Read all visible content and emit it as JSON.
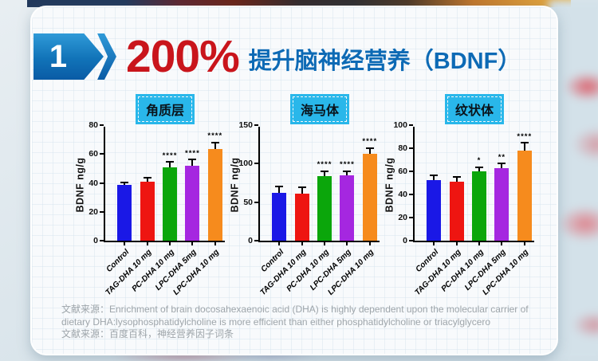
{
  "header": {
    "badge_number": "1",
    "highlight": "200%",
    "title": "提升脑神经营养（BDNF）"
  },
  "chart_data": [
    {
      "type": "bar",
      "title": "角质层",
      "ylabel": "BDNF ng/g",
      "ylim": [
        0,
        80
      ],
      "yticks": [
        0,
        20,
        40,
        60,
        80
      ],
      "categories": [
        "Control",
        "TAG-DHA 10 mg",
        "PC-DHA 10 mg",
        "LPC-DHA 5mg",
        "LPC-DHA 10 mg"
      ],
      "values": [
        38.5,
        41,
        50.5,
        52,
        63.5
      ],
      "errors": [
        1.5,
        2,
        3.5,
        3.5,
        4
      ],
      "significance": [
        "",
        "",
        "****",
        "****",
        "****"
      ],
      "legend_position": "none",
      "grid": false
    },
    {
      "type": "bar",
      "title": "海马体",
      "ylabel": "BDNF ng/g",
      "ylim": [
        0,
        150
      ],
      "yticks": [
        0,
        50,
        100,
        150
      ],
      "categories": [
        "Control",
        "TAG-DHA 10 mg",
        "PC-DHA 10 mg",
        "LPC-DHA 5mg",
        "LPC-DHA 10 mg"
      ],
      "values": [
        62,
        61,
        84,
        85,
        113
      ],
      "errors": [
        7,
        7,
        5,
        4,
        6
      ],
      "significance": [
        "",
        "",
        "****",
        "****",
        "****"
      ],
      "legend_position": "none",
      "grid": false
    },
    {
      "type": "bar",
      "title": "纹状体",
      "ylabel": "BDNF ng/g",
      "ylim": [
        0,
        100
      ],
      "yticks": [
        0,
        20,
        40,
        60,
        80,
        100
      ],
      "categories": [
        "Control",
        "TAG-DHA 10 mg",
        "PC-DHA 10 mg",
        "LPC-DHA 5mg",
        "LPC-DHA 10 mg"
      ],
      "values": [
        52.5,
        51,
        60,
        63,
        78
      ],
      "errors": [
        3.5,
        3.5,
        3,
        3,
        6
      ],
      "significance": [
        "",
        "",
        "*",
        "**",
        "****"
      ],
      "legend_position": "none",
      "grid": false
    }
  ],
  "colors": {
    "bars": [
      "#1a18e6",
      "#ee1511",
      "#0ba60b",
      "#a527e0",
      "#f68b1d"
    ],
    "highlight_red": "#c9151c",
    "title_blue": "#0d6ab5",
    "region_label_bg": "#29b7ea",
    "badge_gradient_top": "#2f9ad8",
    "badge_gradient_bottom": "#0a5ba5"
  },
  "footer": {
    "line1": "文献来源：Enrichment of brain docosahexaenoic acid (DHA) is highly dependent upon the molecular carrier of",
    "line2": "dietary DHA:lysophosphatidylcholine is more efficient than either phosphatidylcholine or triacylglycero",
    "line3": "文献来源：百度百科，神经营养因子词条"
  }
}
